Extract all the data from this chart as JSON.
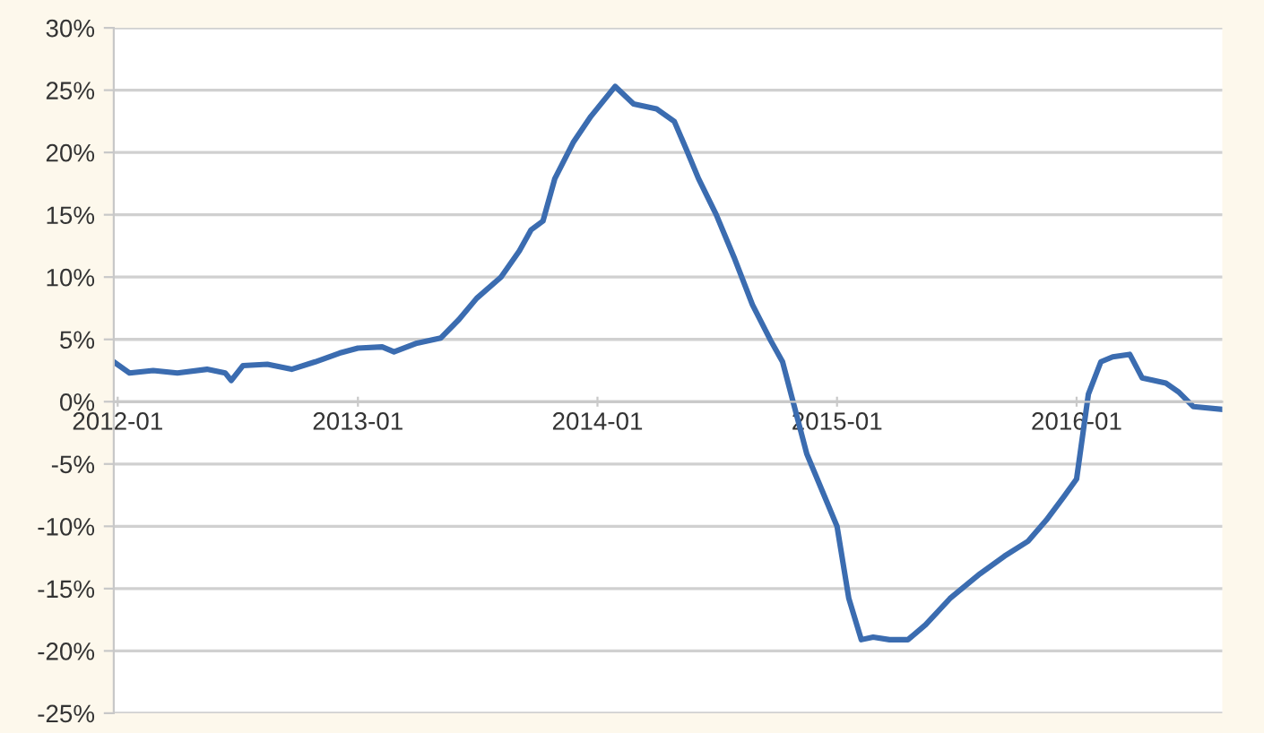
{
  "chart_data": {
    "type": "line",
    "x": [
      "2011-12-26",
      "2012-01-19",
      "2012-02-24",
      "2012-04-01",
      "2012-05-16",
      "2012-06-13",
      "2012-06-22",
      "2012-07-10",
      "2012-08-16",
      "2012-09-22",
      "2012-10-28",
      "2012-12-04",
      "2013-01-01",
      "2013-02-07",
      "2013-02-25",
      "2013-04-01",
      "2013-05-07",
      "2013-06-04",
      "2013-07-01",
      "2013-08-07",
      "2013-09-04",
      "2013-09-22",
      "2013-10-10",
      "2013-10-28",
      "2013-11-25",
      "2013-12-22",
      "2014-01-28",
      "2014-02-25",
      "2014-04-01",
      "2014-04-28",
      "2014-05-16",
      "2014-06-04",
      "2014-07-01",
      "2014-07-28",
      "2014-08-25",
      "2014-09-22",
      "2014-10-10",
      "2014-10-28",
      "2014-11-16",
      "2014-12-13",
      "2015-01-01",
      "2015-01-19",
      "2015-02-07",
      "2015-02-25",
      "2015-03-22",
      "2015-04-19",
      "2015-05-16",
      "2015-06-22",
      "2015-08-07",
      "2015-09-13",
      "2015-10-19",
      "2015-11-16",
      "2015-12-13",
      "2016-01-01",
      "2016-01-10",
      "2016-01-19",
      "2016-02-07",
      "2016-02-25",
      "2016-03-22",
      "2016-04-10",
      "2016-05-16",
      "2016-06-04",
      "2016-06-27",
      "2016-08-07"
    ],
    "series": [
      {
        "color": "#3b6cb0",
        "values": [
          3.2,
          2.3,
          2.5,
          2.3,
          2.6,
          2.3,
          1.7,
          2.9,
          3.0,
          2.6,
          3.2,
          3.9,
          4.3,
          4.4,
          4.0,
          4.7,
          5.1,
          6.6,
          8.3,
          10.0,
          12.1,
          13.8,
          14.5,
          17.9,
          20.8,
          22.9,
          25.3,
          23.9,
          23.5,
          22.5,
          20.3,
          17.9,
          15.0,
          11.6,
          7.8,
          4.9,
          3.2,
          -0.4,
          -4.2,
          -7.6,
          -10.0,
          -15.8,
          -19.1,
          -18.9,
          -19.1,
          -19.1,
          -17.9,
          -15.8,
          -13.8,
          -12.4,
          -11.2,
          -9.5,
          -7.6,
          -6.2,
          -2.8,
          0.6,
          3.2,
          3.6,
          3.8,
          1.9,
          1.5,
          0.8,
          -0.4,
          -0.6
        ]
      }
    ],
    "xlim": [
      "2011-12-26",
      "2016-08-10"
    ],
    "xticks": [
      {
        "value": "2012-01-01",
        "label": "2012-01"
      },
      {
        "value": "2013-01-01",
        "label": "2013-01"
      },
      {
        "value": "2014-01-01",
        "label": "2014-01"
      },
      {
        "value": "2015-01-01",
        "label": "2015-01"
      },
      {
        "value": "2016-01-01",
        "label": "2016-01"
      }
    ],
    "ylim": [
      -25,
      30
    ],
    "yticks": [
      {
        "value": -25,
        "label": "-25%"
      },
      {
        "value": -20,
        "label": "-20%"
      },
      {
        "value": -15,
        "label": "-15%"
      },
      {
        "value": -10,
        "label": "-10%"
      },
      {
        "value": -5,
        "label": "-5%"
      },
      {
        "value": 0,
        "label": "0%"
      },
      {
        "value": 5,
        "label": "5%"
      },
      {
        "value": 10,
        "label": "10%"
      },
      {
        "value": 15,
        "label": "15%"
      },
      {
        "value": 20,
        "label": "20%"
      },
      {
        "value": 25,
        "label": "25%"
      },
      {
        "value": 30,
        "label": "30%"
      }
    ],
    "grid": "y",
    "legend": false,
    "marker": "none",
    "line_style": "solid"
  }
}
